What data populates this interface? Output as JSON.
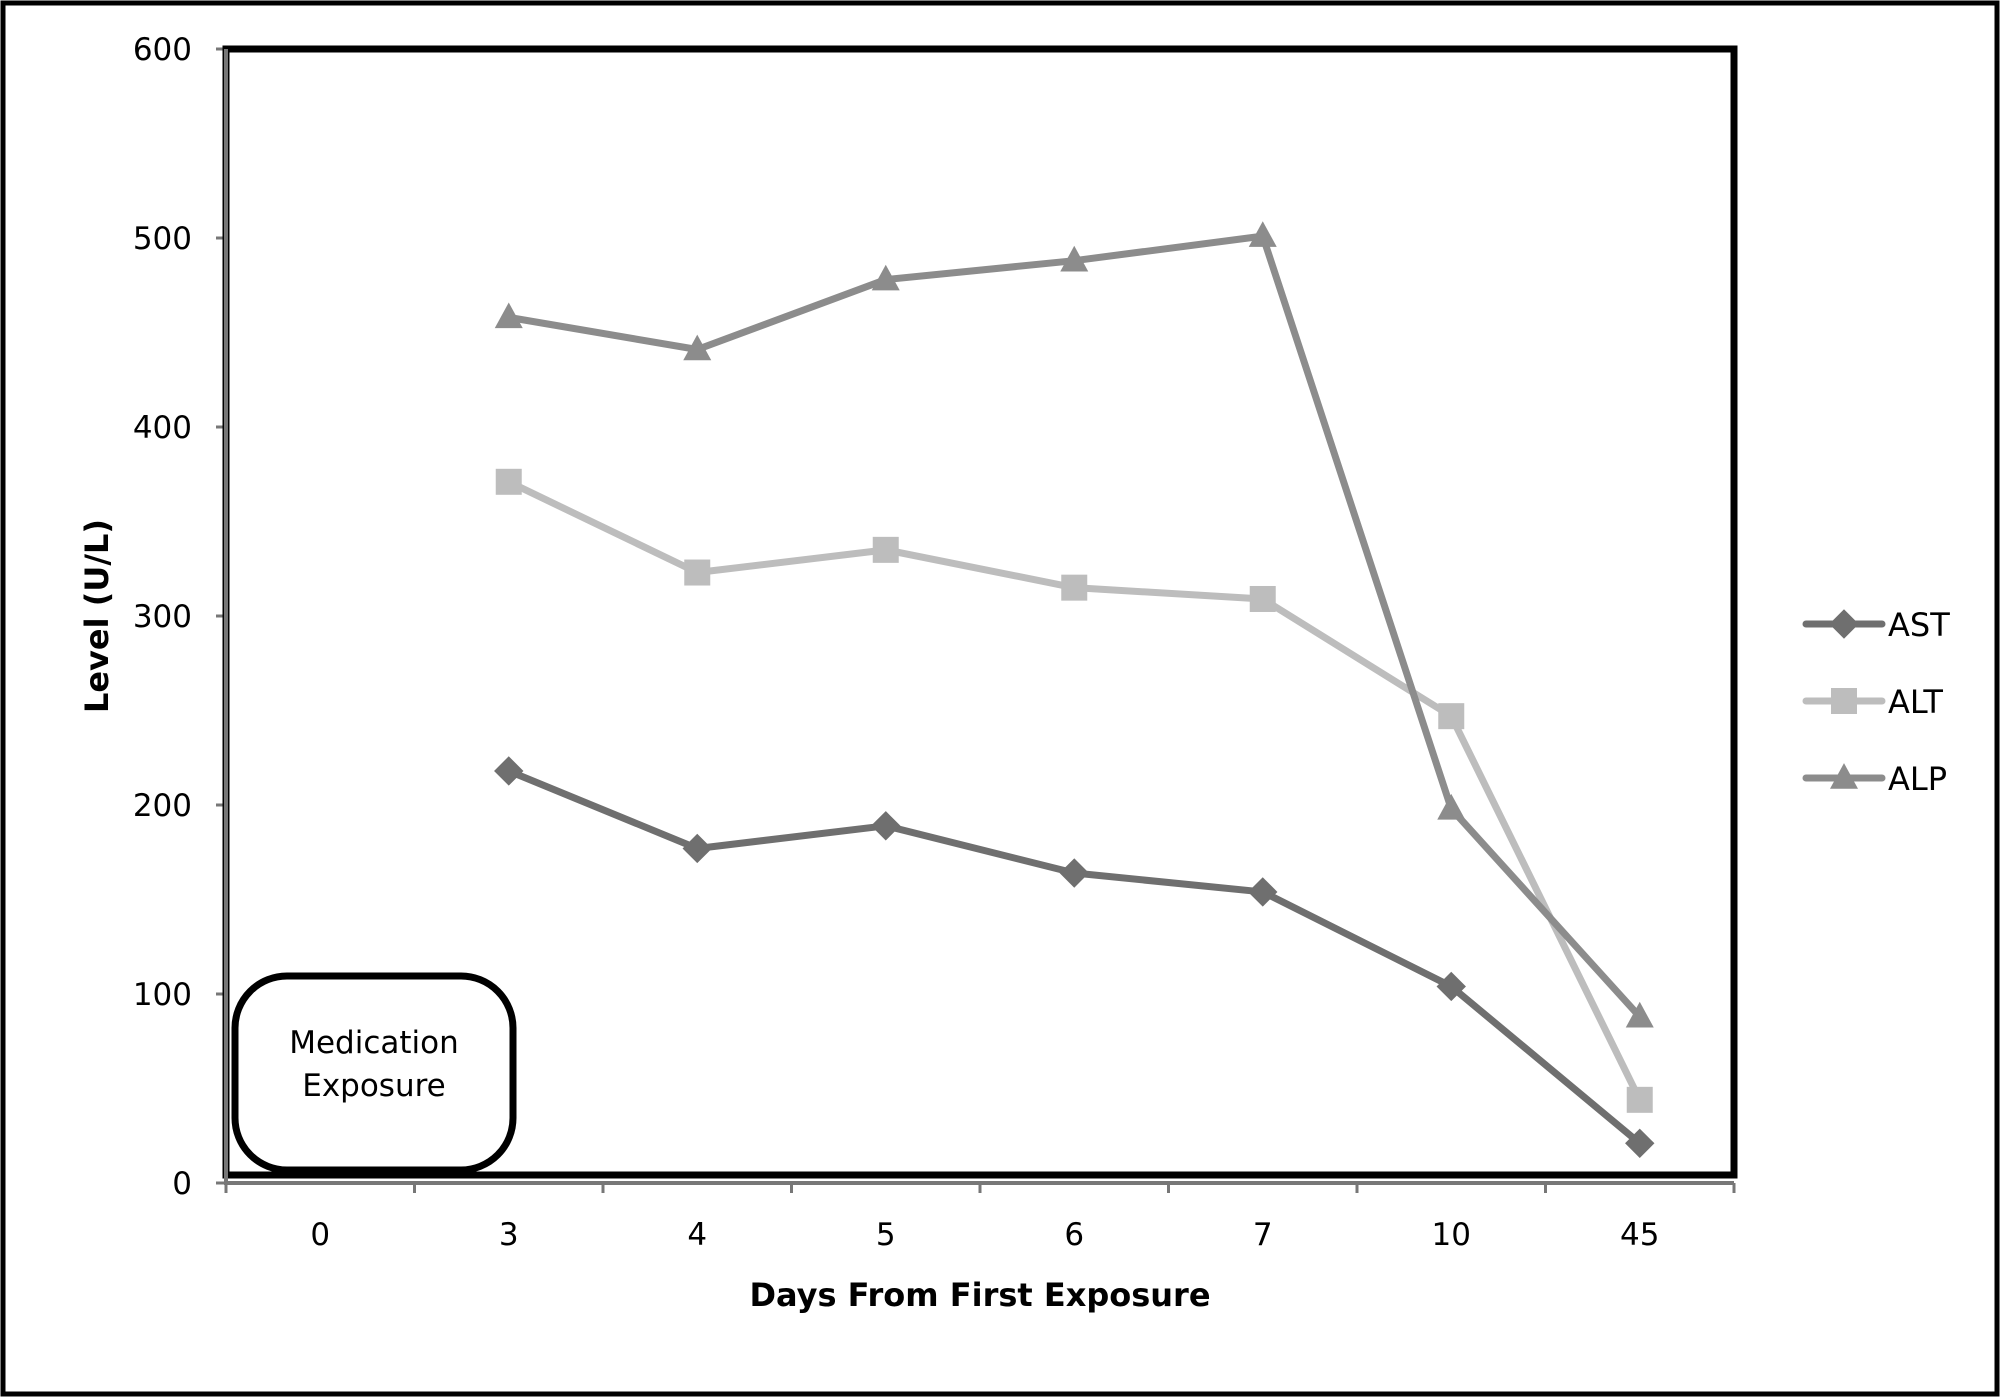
{
  "chart_data": {
    "type": "line",
    "categories": [
      "0",
      "3",
      "4",
      "5",
      "6",
      "7",
      "10",
      "45"
    ],
    "series": [
      {
        "name": "AST",
        "marker": "diamond",
        "color": "#6f6f6f",
        "values": [
          null,
          218,
          177,
          189,
          164,
          154,
          104,
          21
        ]
      },
      {
        "name": "ALT",
        "marker": "square",
        "color": "#bdbdbd",
        "values": [
          null,
          371,
          323,
          335,
          315,
          309,
          247,
          44
        ]
      },
      {
        "name": "ALP",
        "marker": "triangle",
        "color": "#8c8c8c",
        "values": [
          null,
          458,
          441,
          478,
          488,
          501,
          198,
          88
        ]
      }
    ],
    "title": "",
    "xlabel": "Days From First Exposure",
    "ylabel": "Level (U/L)",
    "ylim": [
      0,
      600
    ],
    "yticks": [
      "0",
      "100",
      "200",
      "300",
      "400",
      "500",
      "600"
    ],
    "grid": false,
    "legend": "right",
    "annotation": {
      "line1": "Medication",
      "line2": "Exposure"
    }
  }
}
